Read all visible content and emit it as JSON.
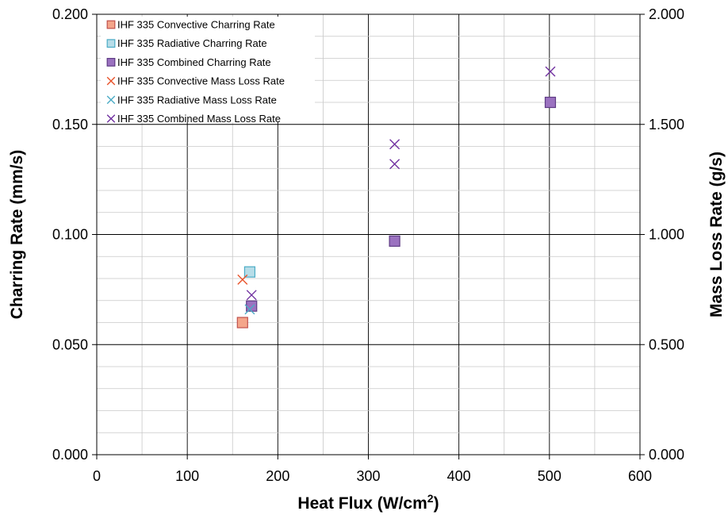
{
  "chart_data": {
    "type": "scatter",
    "xlabel_main": "Heat Flux (W/cm",
    "xlabel_sup": "2",
    "xlabel_end": ")",
    "ylabel": "Charring Rate (mm/s)",
    "y2label": "Mass Loss Rate (g/s)",
    "xlim": [
      0,
      600
    ],
    "ylim": [
      0,
      0.2
    ],
    "y2lim": [
      0,
      2.0
    ],
    "x_ticks": [
      "0",
      "100",
      "200",
      "300",
      "400",
      "500",
      "600"
    ],
    "y_ticks": [
      "0.000",
      "0.050",
      "0.100",
      "0.150",
      "0.200"
    ],
    "y2_ticks": [
      "0.000",
      "0.500",
      "1.000",
      "1.500",
      "2.000"
    ],
    "grid": true,
    "legend_position": "top-left",
    "series": [
      {
        "name": "IHF 335 Convective Charring Rate",
        "marker": "square",
        "fill": "#f4a58a",
        "stroke": "#c0504d",
        "axis": "left",
        "x": [
          161
        ],
        "y": [
          0.06
        ]
      },
      {
        "name": "IHF 335 Radiative Charring Rate",
        "marker": "square",
        "fill": "#b7dde8",
        "stroke": "#4bacc6",
        "axis": "left",
        "x": [
          169
        ],
        "y": [
          0.083
        ]
      },
      {
        "name": "IHF 335 Combined Charring Rate",
        "marker": "square",
        "fill": "#9b72c0",
        "stroke": "#5f3c85",
        "axis": "left",
        "x": [
          171,
          329,
          501
        ],
        "y": [
          0.0675,
          0.097,
          0.16
        ]
      },
      {
        "name": "IHF 335 Convective Mass Loss Rate",
        "marker": "x",
        "stroke": "#e8532b",
        "axis": "right",
        "x": [
          161
        ],
        "y": [
          0.795
        ]
      },
      {
        "name": "IHF 335 Radiative Mass Loss Rate",
        "marker": "x",
        "stroke": "#4bacc6",
        "axis": "right",
        "x": [
          169
        ],
        "y": [
          0.66
        ]
      },
      {
        "name": "IHF 335 Combined Mass Loss Rate",
        "marker": "x",
        "stroke": "#7030a0",
        "axis": "right",
        "x": [
          171,
          329,
          329,
          501
        ],
        "y": [
          0.725,
          1.32,
          1.41,
          1.74
        ]
      }
    ]
  }
}
